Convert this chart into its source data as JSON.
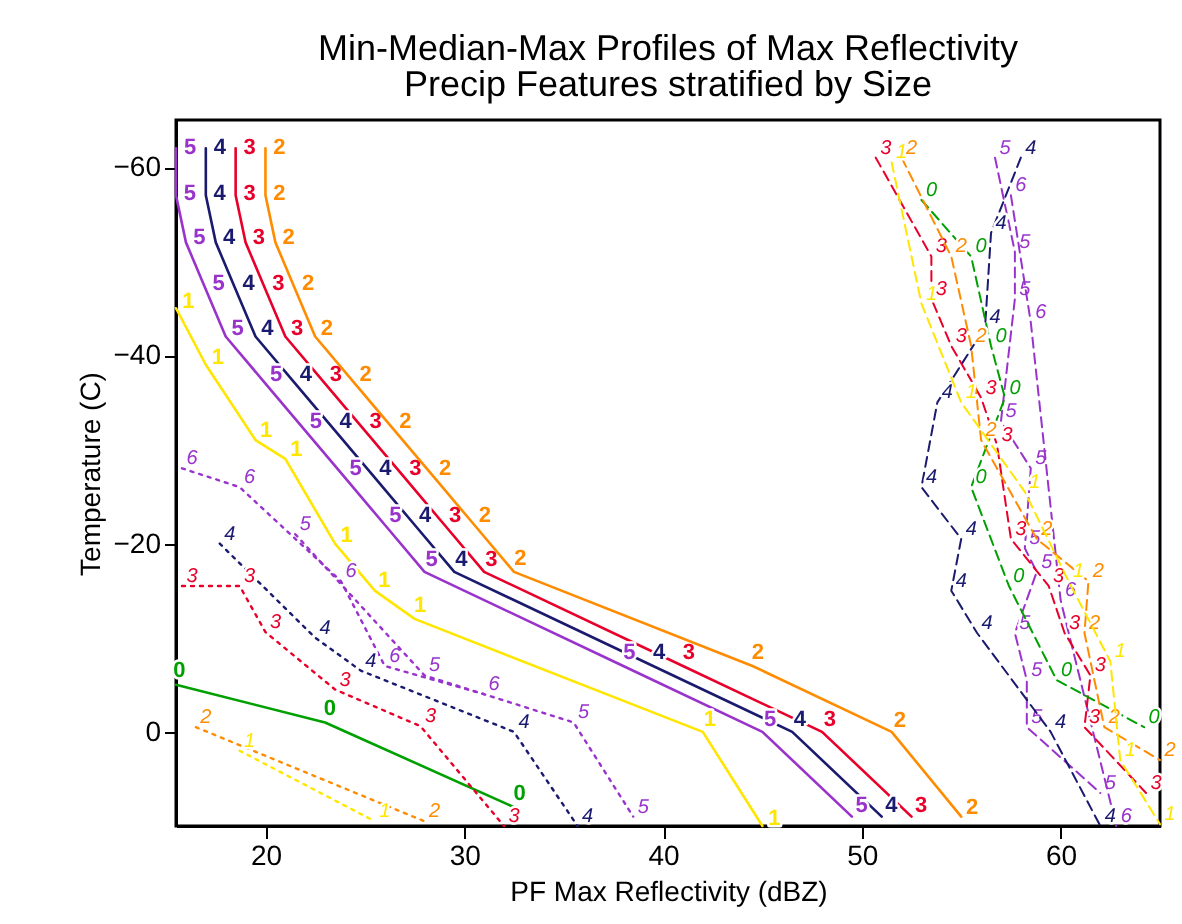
{
  "chart_data": {
    "type": "line",
    "title": "Min-Median-Max Profiles of Max Reflectivity",
    "subtitle": "Precip Features stratified by Size",
    "xlabel": "PF Max Reflectivity (dBZ)",
    "ylabel": "Temperature (C)",
    "xlim": [
      15.5,
      65
    ],
    "ylim": [
      10,
      -65
    ],
    "xticks": [
      20,
      30,
      40,
      50,
      60
    ],
    "yticks": [
      -60,
      -40,
      -20,
      0
    ],
    "series": [
      {
        "name": "3",
        "color": "#e8002a",
        "line_style": "solid",
        "x": [
          18.5,
          18.5,
          19,
          20,
          21,
          23,
          25,
          27,
          29,
          31,
          41,
          48,
          52.5
        ],
        "values": [
          -62,
          -57,
          -52,
          -47,
          -42,
          -37,
          -32,
          -27,
          -22,
          -17,
          -7,
          0,
          9
        ]
      },
      {
        "name": "2",
        "color": "#ff8c00",
        "line_style": "solid",
        "x": [
          20,
          20,
          20.5,
          21.5,
          22.5,
          24.5,
          26.5,
          28.5,
          30.5,
          32.5,
          44.5,
          51.5,
          55
        ],
        "values": [
          -62,
          -57,
          -52,
          -47,
          -42,
          -37,
          -32,
          -27,
          -22,
          -17,
          -7,
          0,
          9
        ]
      },
      {
        "name": "4",
        "color": "#1a1a6e",
        "line_style": "solid",
        "x": [
          17,
          17,
          17.5,
          18.5,
          19.5,
          21.5,
          23.5,
          25.5,
          27.5,
          29.5,
          39.5,
          46.5,
          51
        ],
        "values": [
          -62,
          -57,
          -52,
          -47,
          -42,
          -37,
          -32,
          -27,
          -22,
          -17,
          -7,
          0,
          9
        ]
      },
      {
        "name": "5",
        "color": "#9933cc",
        "line_style": "solid",
        "x": [
          15.5,
          15.5,
          16,
          17,
          18,
          20,
          22,
          24,
          26,
          28,
          38,
          45,
          49.5
        ],
        "values": [
          -62,
          -57,
          -52,
          -47,
          -42,
          -37,
          -32,
          -27,
          -22,
          -17,
          -7,
          0,
          9
        ]
      },
      {
        "name": "1",
        "color": "#ffe600",
        "line_style": "solid",
        "x": [
          15.5,
          17,
          19.5,
          21,
          23.5,
          25.5,
          27.5,
          42,
          45
        ],
        "values": [
          -45,
          -39,
          -31,
          -29,
          -20,
          -15,
          -12,
          0,
          10
        ]
      },
      {
        "name": "0",
        "color": "#00a000",
        "line_style": "solid",
        "x": [
          15.5,
          23,
          32.5
        ],
        "values": [
          -5,
          -1,
          8
        ]
      },
      {
        "name": "6",
        "color": "#9933cc",
        "line_style": "dotted",
        "x": [
          15.8,
          18.7,
          23.8,
          26,
          31
        ],
        "values": [
          -28,
          -26,
          -16,
          -7,
          -4
        ]
      },
      {
        "name": "5",
        "color": "#9933cc",
        "line_style": "dotted",
        "x": [
          21.5,
          28,
          35.5,
          38.5
        ],
        "values": [
          -21,
          -6,
          -1,
          9
        ]
      },
      {
        "name": "4",
        "color": "#1a1a6e",
        "line_style": "dotted",
        "x": [
          17.7,
          22.5,
          24.8,
          32.5,
          35.7
        ],
        "values": [
          -20,
          -10,
          -6.5,
          0,
          10
        ]
      },
      {
        "name": "3",
        "color": "#e8002a",
        "line_style": "dotted",
        "x": [
          15.8,
          18.7,
          20,
          23.5,
          27.8,
          32
        ],
        "values": [
          -15.5,
          -15.5,
          -10.6,
          -4.5,
          -0.6,
          10
        ]
      },
      {
        "name": "2",
        "color": "#ff8c00",
        "line_style": "dotted",
        "x": [
          16.5,
          28
        ],
        "values": [
          -0.5,
          9.5
        ]
      },
      {
        "name": "1",
        "color": "#ffe600",
        "line_style": "dotted",
        "x": [
          18.7,
          25.5
        ],
        "values": [
          2,
          9.5
        ]
      },
      {
        "name": "5",
        "color": "#9933cc",
        "line_style": "dashed",
        "x": [
          56.7,
          57.7,
          57.7,
          57,
          58.5,
          58.2,
          58.8,
          57.7,
          58.3,
          58.3,
          62
        ],
        "values": [
          -61,
          -51,
          -46,
          -33,
          -28,
          -19.5,
          -17,
          -10.5,
          -5.5,
          -0.5,
          6.5
        ]
      },
      {
        "name": "6",
        "color": "#9933cc",
        "line_style": "dashed",
        "x": [
          57.5,
          58.5,
          60,
          62.8
        ],
        "values": [
          -57,
          -43.5,
          -14,
          10
        ]
      },
      {
        "name": "4",
        "color": "#1a1a6e",
        "line_style": "dashed",
        "x": [
          58,
          56.5,
          56.2,
          53.8,
          53,
          55,
          54.5,
          55.8,
          59.5,
          62
        ],
        "values": [
          -61,
          -53,
          -43,
          -35,
          -26,
          -20.5,
          -15,
          -10.5,
          0,
          10
        ]
      },
      {
        "name": "3",
        "color": "#e8002a",
        "line_style": "dashed",
        "x": [
          50.7,
          53.5,
          53.5,
          54.5,
          56,
          56.8,
          57.5,
          59.4,
          60.2,
          61.5,
          61.2,
          64.3
        ],
        "values": [
          -61,
          -50.5,
          -46,
          -41,
          -35.5,
          -30.5,
          -20.5,
          -15.5,
          -10.5,
          -6,
          -0.5,
          6.5
        ]
      },
      {
        "name": "0",
        "color": "#00a000",
        "line_style": "dashed",
        "x": [
          53,
          55.5,
          56.5,
          57.2,
          55.5,
          57.4,
          59.8,
          64.2
        ],
        "values": [
          -56.5,
          -50.5,
          -41,
          -35.5,
          -26,
          -15.5,
          -5.5,
          -0.5
        ]
      },
      {
        "name": "2",
        "color": "#ff8c00",
        "line_style": "dashed",
        "x": [
          52,
          54.5,
          55.5,
          56,
          58.8,
          61.4,
          61.2,
          62.2,
          65
        ],
        "values": [
          -61,
          -50.5,
          -41,
          -31,
          -20.5,
          -16,
          -10.5,
          -0.5,
          3
        ]
      },
      {
        "name": "1",
        "color": "#ffe600",
        "line_style": "dashed",
        "x": [
          51.5,
          53,
          55,
          58.2,
          60.4,
          62.5,
          63,
          65
        ],
        "values": [
          -60.5,
          -45.5,
          -35,
          -25.5,
          -16,
          -7.5,
          3,
          9.8
        ]
      }
    ]
  }
}
